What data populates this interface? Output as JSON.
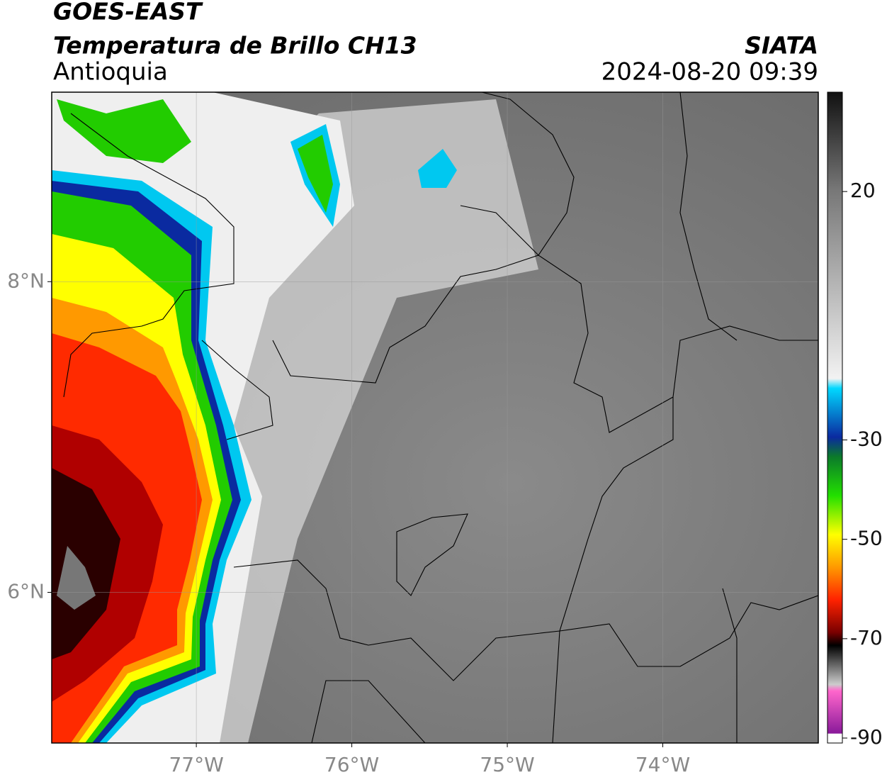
{
  "header": {
    "title": "GOES-EAST",
    "subtitle": "Temperatura de Brillo CH13",
    "region": "Antioquia",
    "source": "SIATA",
    "timestamp": "2024-08-20 09:39"
  },
  "map": {
    "xlim": [
      -77.93,
      -73.0
    ],
    "ylim": [
      5.03,
      9.22
    ],
    "xticks": [
      {
        "value": -77,
        "label": "77°W"
      },
      {
        "value": -76,
        "label": "76°W"
      },
      {
        "value": -75,
        "label": "75°W"
      },
      {
        "value": -74,
        "label": "74°W"
      }
    ],
    "yticks": [
      {
        "value": 8,
        "label": "8°N"
      },
      {
        "value": 6,
        "label": "6°N"
      }
    ],
    "grid": true
  },
  "colorbar": {
    "lim": [
      -91,
      40
    ],
    "ticks": [
      20,
      -30,
      -50,
      -70,
      -90
    ]
  }
}
